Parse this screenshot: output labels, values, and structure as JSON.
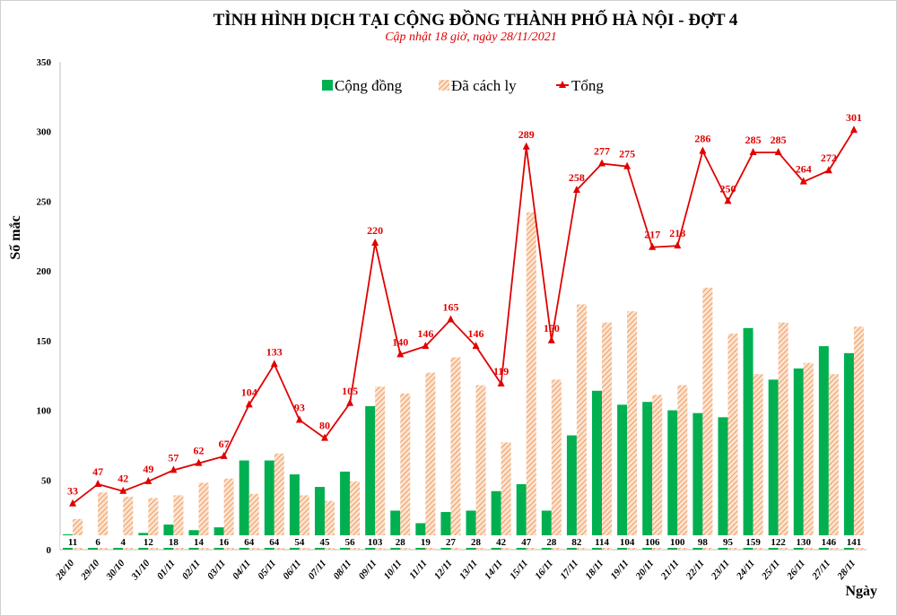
{
  "chart_data": {
    "type": "bar+line",
    "title": "TÌNH HÌNH DỊCH TẠI CỘNG ĐỒNG THÀNH PHỐ HÀ NỘI - ĐỢT 4",
    "subtitle": "Cập nhật 18 giờ, ngày 28/11/2021",
    "xlabel": "Ngày",
    "ylabel": "Số mắc",
    "ylim": [
      0,
      350
    ],
    "yticks": [
      0,
      50,
      100,
      150,
      200,
      250,
      300,
      350
    ],
    "grid": false,
    "legend_position": "top",
    "categories": [
      "28/10",
      "29/10",
      "30/10",
      "31/10",
      "01/11",
      "02/11",
      "03/11",
      "04/11",
      "05/11",
      "06/11",
      "07/11",
      "08/11",
      "09/11",
      "10/11",
      "11/11",
      "12/11",
      "13/11",
      "14/11",
      "15/11",
      "16/11",
      "17/11",
      "18/11",
      "19/11",
      "20/11",
      "21/11",
      "22/11",
      "23/11",
      "24/11",
      "25/11",
      "26/11",
      "27/11",
      "28/11"
    ],
    "series": [
      {
        "name": "Cộng đồng",
        "type": "bar",
        "color": "#00b050",
        "values": [
          11,
          6,
          4,
          12,
          18,
          14,
          16,
          64,
          64,
          54,
          45,
          56,
          103,
          28,
          19,
          27,
          28,
          42,
          47,
          28,
          82,
          114,
          104,
          106,
          100,
          98,
          95,
          159,
          122,
          130,
          146,
          141
        ]
      },
      {
        "name": "Đã cách ly",
        "type": "bar",
        "color": "#f4b183",
        "pattern": "hatched",
        "values": [
          22,
          41,
          38,
          37,
          39,
          48,
          51,
          40,
          69,
          39,
          35,
          49,
          117,
          112,
          127,
          138,
          118,
          77,
          242,
          122,
          176,
          163,
          171,
          111,
          118,
          188,
          155,
          126,
          163,
          134,
          126,
          160
        ]
      },
      {
        "name": "Tổng",
        "type": "line",
        "color": "#e00000",
        "marker": "triangle",
        "values": [
          33,
          47,
          42,
          49,
          57,
          62,
          67,
          104,
          133,
          93,
          80,
          105,
          220,
          140,
          146,
          165,
          146,
          119,
          289,
          150,
          258,
          277,
          275,
          217,
          218,
          286,
          250,
          285,
          285,
          264,
          272,
          301
        ]
      }
    ]
  }
}
